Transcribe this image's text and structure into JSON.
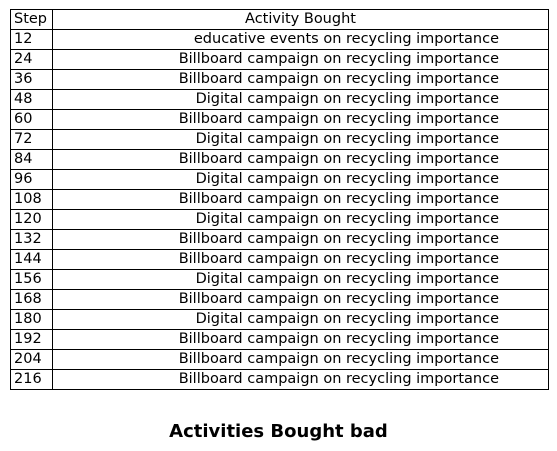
{
  "chart_data": {
    "type": "table",
    "title": "Activities Bought bad",
    "columns": [
      "Step",
      "Activity Bought"
    ],
    "rows": [
      [
        "12",
        "educative events on recycling importance"
      ],
      [
        "24",
        "Billboard campaign on recycling importance"
      ],
      [
        "36",
        "Billboard campaign on recycling importance"
      ],
      [
        "48",
        "Digital campaign on recycling importance"
      ],
      [
        "60",
        "Billboard campaign on recycling importance"
      ],
      [
        "72",
        "Digital campaign on recycling importance"
      ],
      [
        "84",
        "Billboard campaign on recycling importance"
      ],
      [
        "96",
        "Digital campaign on recycling importance"
      ],
      [
        "108",
        "Billboard campaign on recycling importance"
      ],
      [
        "120",
        "Digital campaign on recycling importance"
      ],
      [
        "132",
        "Billboard campaign on recycling importance"
      ],
      [
        "144",
        "Billboard campaign on recycling importance"
      ],
      [
        "156",
        "Digital campaign on recycling importance"
      ],
      [
        "168",
        "Billboard campaign on recycling importance"
      ],
      [
        "180",
        "Digital campaign on recycling importance"
      ],
      [
        "192",
        "Billboard campaign on recycling importance"
      ],
      [
        "204",
        "Billboard campaign on recycling importance"
      ],
      [
        "216",
        "Billboard campaign on recycling importance"
      ]
    ]
  }
}
